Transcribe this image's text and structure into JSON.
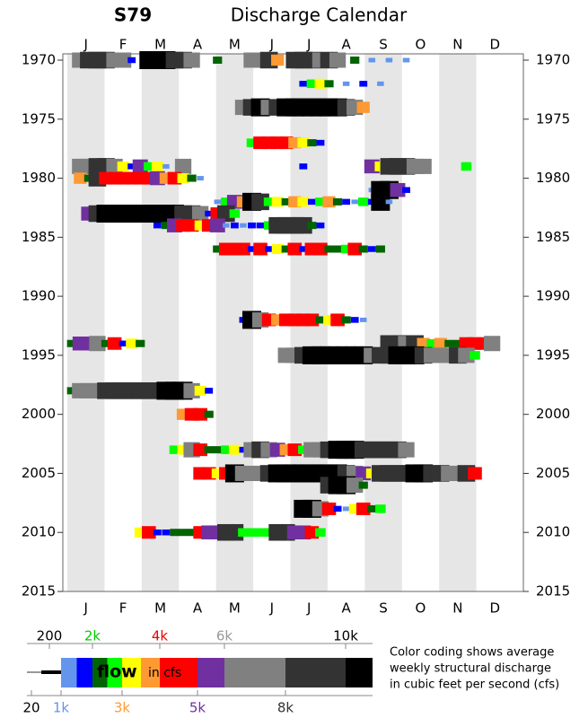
{
  "chart_data": {
    "type": "calendar",
    "title": "S79",
    "subtitle": "Discharge Calendar",
    "categories": [
      "J",
      "F",
      "M",
      "A",
      "M",
      "J",
      "J",
      "A",
      "S",
      "O",
      "N",
      "D"
    ],
    "ylim": [
      1970,
      2015
    ],
    "yticks": [
      1970,
      1975,
      1980,
      1985,
      1990,
      1995,
      2000,
      2005,
      2010,
      2015
    ],
    "rows": [
      {
        "year": 1970,
        "weeks": [
          2,
          3,
          4,
          5,
          6,
          7,
          8,
          10,
          11,
          12,
          13,
          14,
          15,
          18,
          22,
          23,
          24,
          25,
          27,
          28,
          29,
          30,
          31,
          32,
          34,
          36,
          38,
          40
        ],
        "values": [
          7000,
          9000,
          9000,
          8000,
          7000,
          7000,
          1500,
          11000,
          11000,
          11000,
          9000,
          8000,
          7000,
          2000,
          7000,
          7000,
          8000,
          3500,
          8000,
          8000,
          8000,
          7000,
          9000,
          7000,
          2000,
          1100,
          1100,
          1100
        ]
      },
      {
        "year": 1972,
        "weeks": [
          28,
          29,
          30,
          31,
          33,
          35,
          37
        ],
        "values": [
          1500,
          2500,
          3000,
          2000,
          1200,
          1500,
          1200
        ]
      },
      {
        "year": 1974,
        "weeks": [
          21,
          22,
          23,
          24,
          25,
          26,
          27,
          28,
          29,
          30,
          31,
          32,
          33,
          34,
          35
        ],
        "values": [
          6000,
          9000,
          11000,
          7000,
          8000,
          11000,
          11000,
          11000,
          11000,
          11000,
          11000,
          11000,
          8000,
          7000,
          3500
        ]
      },
      {
        "year": 1977,
        "weeks": [
          22,
          23,
          24,
          25,
          26,
          27,
          28,
          29,
          30
        ],
        "values": [
          2500,
          4000,
          4500,
          4500,
          4000,
          3500,
          3000,
          2000,
          1500
        ]
      },
      {
        "year": 1979,
        "weeks": [
          2,
          3,
          4,
          5,
          6,
          7,
          8,
          9,
          10,
          11,
          12,
          14,
          28,
          36,
          37,
          38,
          39,
          40,
          41,
          42,
          47
        ],
        "values": [
          7000,
          7000,
          8000,
          8000,
          7000,
          3000,
          1500,
          5000,
          2500,
          3000,
          1200,
          7000,
          1500,
          5000,
          3000,
          9000,
          9000,
          9000,
          7000,
          7000,
          2800
        ]
      },
      {
        "year": 1980,
        "weeks": [
          2,
          3,
          4,
          5,
          6,
          7,
          8,
          9,
          10,
          11,
          12,
          13,
          14,
          15,
          16
        ],
        "values": [
          3500,
          2000,
          8000,
          4000,
          4000,
          4500,
          4500,
          4000,
          4000,
          5000,
          3500,
          4500,
          3000,
          2000,
          1200
        ]
      },
      {
        "year": 1981,
        "weeks": [
          36,
          37,
          38,
          39,
          40
        ],
        "values": [
          1200,
          11000,
          11000,
          5000,
          1500
        ]
      },
      {
        "year": 1982,
        "weeks": [
          18,
          19,
          20,
          21,
          22,
          23,
          24,
          25,
          26,
          27,
          28,
          29,
          30,
          31,
          32,
          33,
          34,
          35,
          36,
          37,
          38
        ],
        "values": [
          1200,
          2500,
          5000,
          3500,
          11000,
          9000,
          2500,
          3000,
          2000,
          3500,
          3000,
          1500,
          2500,
          3500,
          2000,
          1500,
          1200,
          2500,
          1500,
          11000,
          1200
        ]
      },
      {
        "year": 1983,
        "weeks": [
          3,
          4,
          5,
          6,
          7,
          8,
          9,
          10,
          11,
          12,
          13,
          14,
          15,
          16,
          17,
          18,
          19,
          20
        ],
        "values": [
          5000,
          8000,
          11000,
          11000,
          11000,
          11000,
          11000,
          11000,
          11000,
          11000,
          11000,
          9000,
          8000,
          7000,
          1500,
          4000,
          8000,
          2500
        ]
      },
      {
        "year": 1984,
        "weeks": [
          11,
          12,
          13,
          14,
          15,
          16,
          17,
          18,
          19,
          20,
          21,
          22,
          23,
          24,
          25,
          26,
          27,
          28,
          29,
          30
        ],
        "values": [
          1500,
          2000,
          5000,
          4000,
          4000,
          3000,
          4000,
          5000,
          1200,
          1500,
          1200,
          1500,
          1800,
          2500,
          8000,
          9000,
          8000,
          8000,
          2000,
          1500
        ]
      },
      {
        "year": 1986,
        "weeks": [
          18,
          19,
          20,
          21,
          22,
          23,
          24,
          25,
          26,
          27,
          28,
          29,
          30,
          31,
          32,
          33,
          34,
          35,
          36,
          37
        ],
        "values": [
          2000,
          4000,
          4000,
          4000,
          1500,
          4000,
          1800,
          3000,
          2000,
          4000,
          1800,
          4000,
          4000,
          2000,
          2000,
          2500,
          4000,
          2000,
          1800,
          2000
        ]
      },
      {
        "year": 1992,
        "weeks": [
          21,
          22,
          23,
          24,
          25,
          26,
          27,
          28,
          29,
          30,
          31,
          32,
          33,
          34,
          35
        ],
        "values": [
          1800,
          11000,
          7000,
          4000,
          3500,
          4000,
          4000,
          4000,
          4000,
          2000,
          3000,
          4000,
          2000,
          1500,
          1200
        ]
      },
      {
        "year": 1994,
        "weeks": [
          1,
          2,
          3,
          4,
          5,
          6,
          7,
          8,
          9,
          38,
          39,
          40,
          41,
          42,
          43,
          44,
          45,
          46,
          47,
          48,
          49,
          50
        ],
        "values": [
          2000,
          5000,
          5000,
          7000,
          2000,
          4000,
          1500,
          3000,
          2000,
          8000,
          8000,
          7000,
          8000,
          3500,
          2500,
          3500,
          2000,
          2000,
          4000,
          4000,
          4000,
          7000
        ]
      },
      {
        "year": 1995,
        "weeks": [
          26,
          27,
          28,
          29,
          30,
          31,
          32,
          33,
          34,
          35,
          36,
          37,
          38,
          39,
          40,
          41,
          42,
          43,
          44,
          45,
          46,
          47,
          48
        ],
        "values": [
          6000,
          6000,
          8000,
          11000,
          11000,
          11000,
          11000,
          11000,
          11000,
          11000,
          7000,
          8000,
          8000,
          11000,
          11000,
          11000,
          9000,
          7000,
          7000,
          7000,
          8000,
          7000,
          2500
        ]
      },
      {
        "year": 1998,
        "weeks": [
          1,
          2,
          3,
          4,
          5,
          6,
          7,
          8,
          9,
          10,
          11,
          12,
          13,
          14,
          15,
          16,
          17
        ],
        "values": [
          2000,
          7000,
          7000,
          7000,
          8000,
          8000,
          8000,
          9000,
          9000,
          9000,
          9000,
          10000,
          11000,
          11000,
          6000,
          3000,
          1500
        ]
      },
      {
        "year": 2000,
        "weeks": [
          14,
          15,
          16,
          17
        ],
        "values": [
          3500,
          4000,
          4000,
          2000
        ]
      },
      {
        "year": 2003,
        "weeks": [
          13,
          14,
          15,
          16,
          17,
          18,
          19,
          20,
          21,
          22,
          23,
          24,
          25,
          26,
          27,
          28,
          29,
          30,
          31,
          32,
          33,
          34,
          35,
          36,
          37,
          38,
          39,
          40
        ],
        "values": [
          2500,
          3000,
          7000,
          4500,
          2000,
          2000,
          2500,
          3000,
          1500,
          6000,
          9000,
          7000,
          5000,
          3500,
          4000,
          2500,
          6000,
          7000,
          8000,
          11000,
          11000,
          11000,
          9000,
          8000,
          8000,
          8000,
          8000,
          7000
        ]
      },
      {
        "year": 2005,
        "weeks": [
          16,
          17,
          18,
          19,
          20,
          21,
          22,
          23,
          24,
          25,
          26,
          27,
          28,
          29,
          30,
          31,
          32,
          33,
          34,
          35,
          36,
          37,
          38,
          39,
          40,
          41,
          42,
          43,
          44,
          45,
          46,
          47,
          48
        ],
        "values": [
          4000,
          4000,
          3000,
          4000,
          11000,
          7000,
          7000,
          7000,
          8000,
          11000,
          11000,
          11000,
          11000,
          11000,
          11000,
          11000,
          11000,
          8000,
          7000,
          5000,
          3000,
          8000,
          9000,
          9000,
          9000,
          11000,
          11000,
          8000,
          8000,
          7000,
          7000,
          8000,
          4000
        ]
      },
      {
        "year": 2006,
        "weeks": [
          31,
          32,
          33,
          34,
          35
        ],
        "values": [
          8000,
          11000,
          11000,
          6000,
          2000
        ]
      },
      {
        "year": 2008,
        "weeks": [
          28,
          29,
          30,
          31,
          32,
          33,
          34,
          35,
          36,
          37
        ],
        "values": [
          11000,
          11000,
          6000,
          4000,
          1500,
          1200,
          3000,
          4000,
          2000,
          2500
        ]
      },
      {
        "year": 2010,
        "weeks": [
          9,
          10,
          11,
          12,
          13,
          14,
          15,
          16,
          17,
          18,
          19,
          20,
          21,
          22,
          23,
          24,
          25,
          26,
          27,
          28,
          29,
          30
        ],
        "values": [
          3000,
          4000,
          1500,
          1500,
          2000,
          2000,
          2000,
          4000,
          5000,
          5000,
          8000,
          8000,
          2500,
          2500,
          2500,
          2500,
          8000,
          8000,
          5000,
          5000,
          4000,
          2500
        ]
      }
    ],
    "legend": {
      "edges": [
        1000,
        1500,
        2000,
        2500,
        3000,
        3500,
        4000,
        5000,
        6000,
        8000,
        10000,
        11000
      ],
      "colors": [
        "#6495ed",
        "#0000ff",
        "#006400",
        "#00ff00",
        "#ffff00",
        "#ff9933",
        "#ff0000",
        "#7030a0",
        "#808080",
        "#333333",
        "#000000"
      ],
      "top_ticks": [
        200,
        {
          "value": 2000,
          "label": "2k"
        },
        {
          "value": 4000,
          "label": "4k"
        },
        {
          "value": 6000,
          "label": "6k"
        },
        {
          "value": 10000,
          "label": "10k"
        }
      ],
      "top_colors": [
        "#000000",
        "#00cc00",
        "#ee0000",
        "#999999",
        "#000000"
      ],
      "bottom_ticks": [
        20,
        {
          "value": 1000,
          "label": "1k"
        },
        {
          "value": 3000,
          "label": "3k"
        },
        {
          "value": 5000,
          "label": "5k"
        },
        {
          "value": 8000,
          "label": "8k"
        }
      ],
      "bottom_colors": [
        "#000000",
        "#6495ed",
        "#ff9933",
        "#7030a0",
        "#333333"
      ],
      "bar_word": "flow",
      "bar_unit": "in cfs",
      "note": [
        "Color coding shows average",
        "weekly structural discharge",
        "in cubic feet per second (cfs)"
      ]
    }
  }
}
